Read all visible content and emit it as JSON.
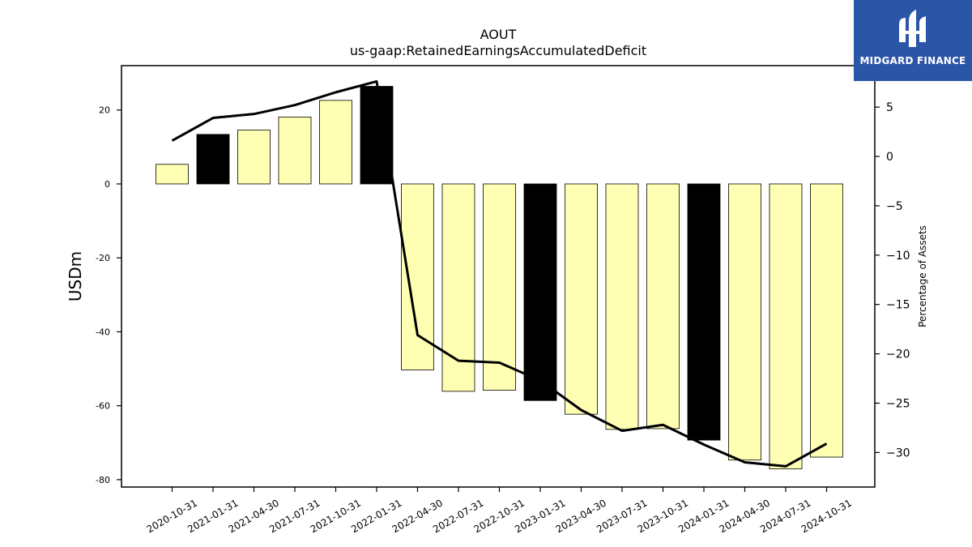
{
  "chart_data": {
    "type": "bar",
    "title": "AOUT",
    "subtitle": "us-gaap:RetainedEarningsAccumulatedDeficit",
    "ylabel": "USDm",
    "y2label": "Percentage of Assets",
    "categories": [
      "2020-10-31",
      "2021-01-31",
      "2021-04-30",
      "2021-07-31",
      "2021-10-31",
      "2022-01-31",
      "2022-04-30",
      "2022-07-31",
      "2022-10-31",
      "2023-01-31",
      "2023-04-30",
      "2023-07-31",
      "2023-10-31",
      "2024-01-31",
      "2024-04-30",
      "2024-07-31",
      "2024-10-31"
    ],
    "series": [
      {
        "type": "bar",
        "values": [
          5.3,
          13.4,
          14.6,
          18.1,
          22.6,
          26.4,
          -50.3,
          -56.1,
          -55.8,
          -58.6,
          -62.3,
          -66.4,
          -66.2,
          -69.3,
          -74.7,
          -77.1,
          -73.9
        ]
      },
      {
        "type": "line",
        "axis": "right",
        "values": [
          1.6,
          3.9,
          4.3,
          5.2,
          6.5,
          7.6,
          -18.1,
          -20.7,
          -20.9,
          -22.7,
          -25.7,
          -27.8,
          -27.2,
          -29.2,
          -31.0,
          -31.4,
          -29.1
        ]
      }
    ],
    "highlighted_categories": [
      "2021-01-31",
      "2022-01-31",
      "2023-01-31",
      "2024-01-31"
    ],
    "bar_color": "#ffffb3",
    "highlight_color": "#000000",
    "line_color": "#000000",
    "ylim": [
      -82,
      32
    ],
    "y2lim": [
      -33.5,
      9.2
    ],
    "yticks": [
      -80,
      -60,
      -40,
      -20,
      0,
      20
    ],
    "y2ticks": [
      -30,
      -25,
      -20,
      -15,
      -10,
      -5,
      0,
      5
    ],
    "grid": false
  },
  "branding": {
    "logo_text": "MIDGARD FINANCE",
    "logo_bg": "#2b56a8"
  }
}
